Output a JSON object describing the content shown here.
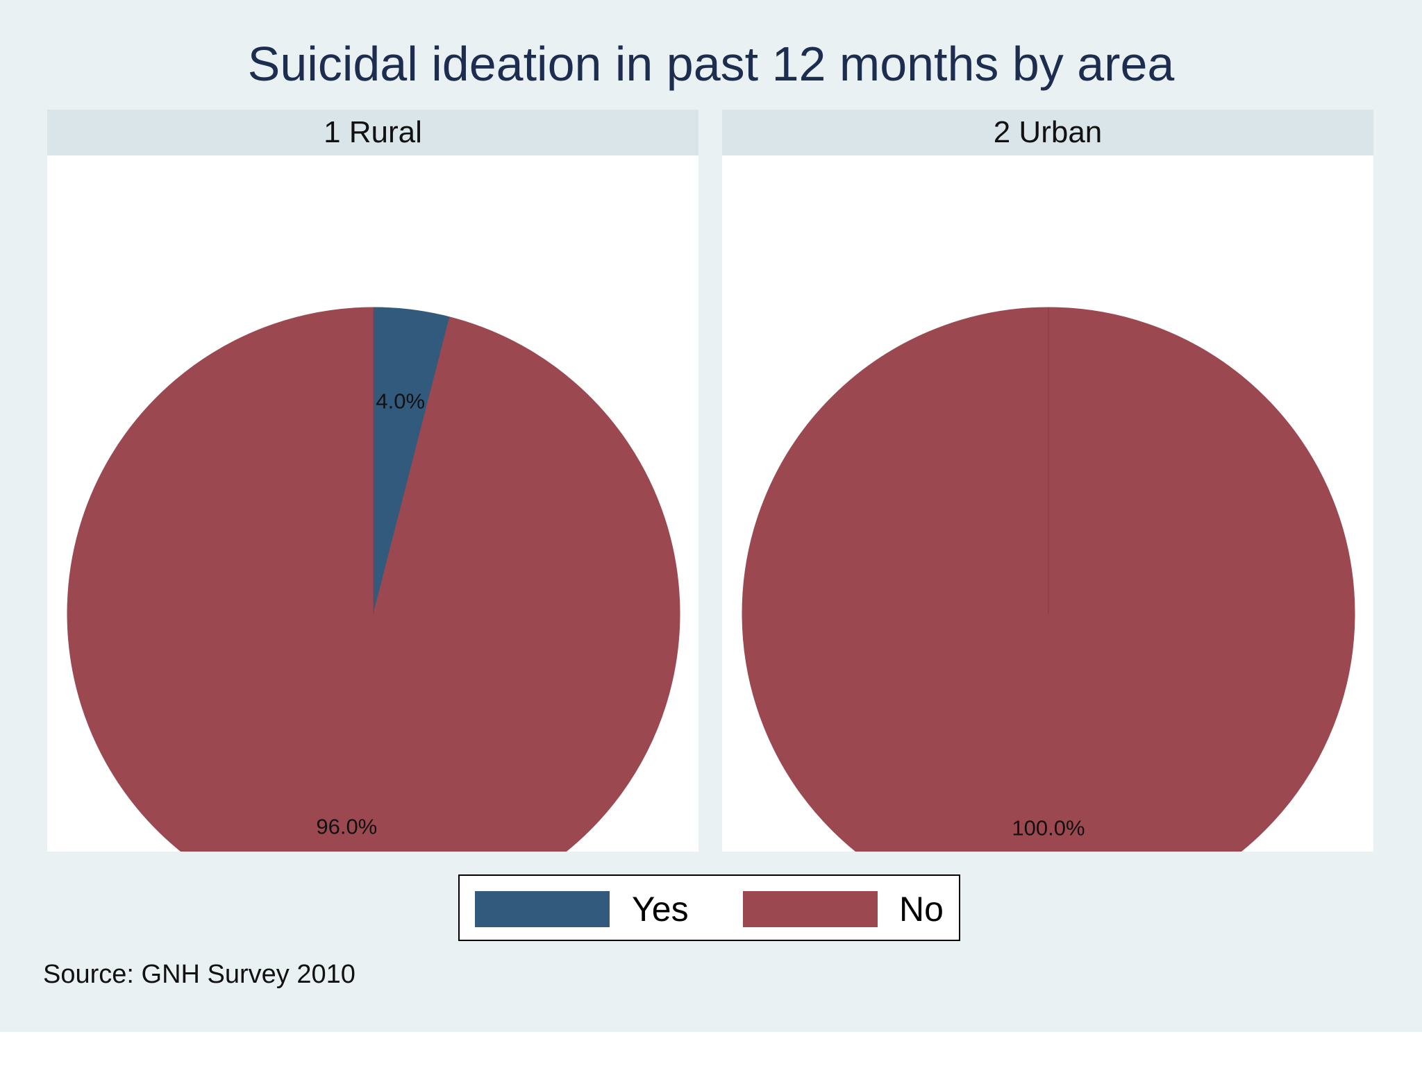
{
  "chart_data": {
    "type": "pie",
    "title": "Suicidal ideation in past 12 months by area",
    "legend": {
      "position": "bottom",
      "entries": [
        {
          "label": "Yes",
          "color": "#325a7d"
        },
        {
          "label": "No",
          "color": "#9b4851"
        }
      ]
    },
    "panels": [
      {
        "name": "1 Rural",
        "slices": [
          {
            "label": "Yes",
            "value": 4.0,
            "display": "4.0%"
          },
          {
            "label": "No",
            "value": 96.0,
            "display": "96.0%"
          }
        ]
      },
      {
        "name": "2 Urban",
        "slices": [
          {
            "label": "Yes",
            "value": 0.0,
            "display": ""
          },
          {
            "label": "No",
            "value": 100.0,
            "display": "100.0%"
          }
        ]
      }
    ],
    "source": "Source: GNH Survey 2010"
  }
}
